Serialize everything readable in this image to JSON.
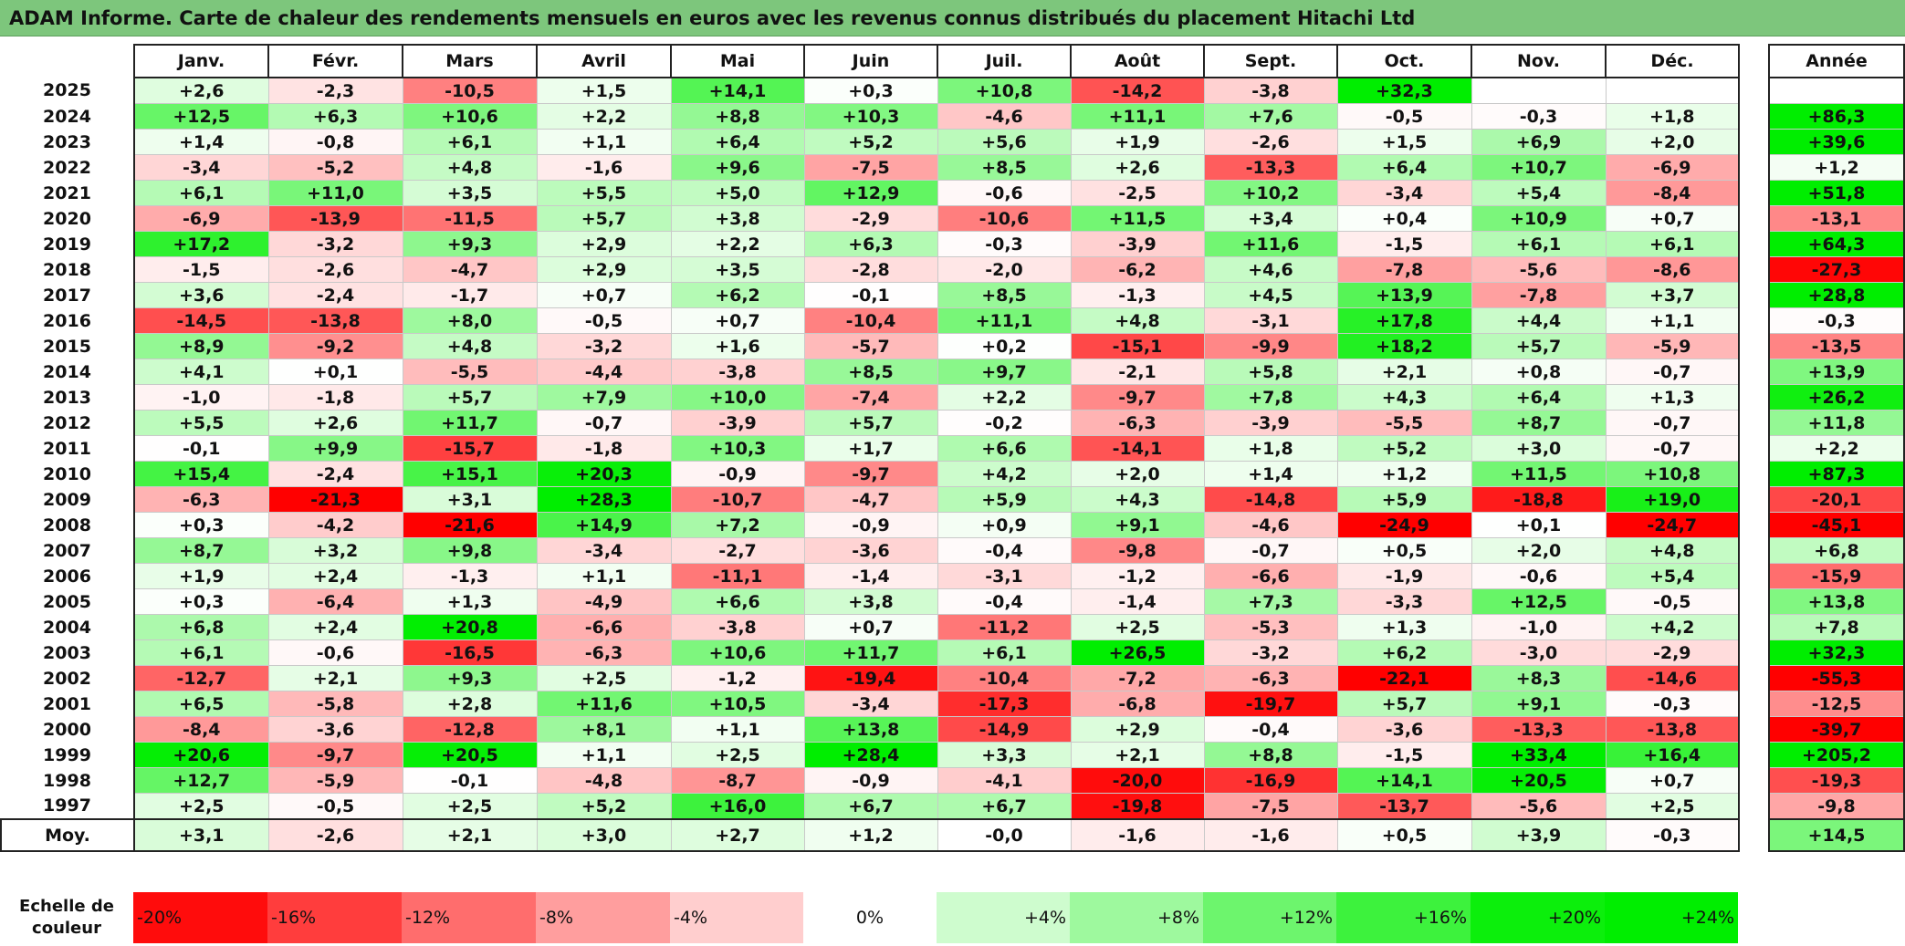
{
  "title": "ADAM Informe. Carte de chaleur des rendements mensuels en euros avec les revenus connus distribués du placement Hitachi Ltd",
  "colors": {
    "title_bar": "#7dc67c",
    "strong_negative": "#ff0000",
    "neutral": "#ffffff",
    "strong_positive": "#00ee00"
  },
  "chart_data": {
    "type": "heatmap",
    "title": "ADAM Informe. Carte de chaleur des rendements mensuels en euros avec les revenus connus distribués du placement Hitachi Ltd",
    "months": [
      "Janv.",
      "Févr.",
      "Mars",
      "Avril",
      "Mai",
      "Juin",
      "Juil.",
      "Août",
      "Sept.",
      "Oct.",
      "Nov.",
      "Déc."
    ],
    "annual_header": "Année",
    "rows": [
      {
        "year": "2025",
        "values": [
          "+2,6",
          "-2,3",
          "-10,5",
          "+1,5",
          "+14,1",
          "+0,3",
          "+10,8",
          "-14,2",
          "-3,8",
          "+32,3",
          "",
          ""
        ],
        "annual": ""
      },
      {
        "year": "2024",
        "values": [
          "+12,5",
          "+6,3",
          "+10,6",
          "+2,2",
          "+8,8",
          "+10,3",
          "-4,6",
          "+11,1",
          "+7,6",
          "-0,5",
          "-0,3",
          "+1,8"
        ],
        "annual": "+86,3"
      },
      {
        "year": "2023",
        "values": [
          "+1,4",
          "-0,8",
          "+6,1",
          "+1,1",
          "+6,4",
          "+5,2",
          "+5,6",
          "+1,9",
          "-2,6",
          "+1,5",
          "+6,9",
          "+2,0"
        ],
        "annual": "+39,6"
      },
      {
        "year": "2022",
        "values": [
          "-3,4",
          "-5,2",
          "+4,8",
          "-1,6",
          "+9,6",
          "-7,5",
          "+8,5",
          "+2,6",
          "-13,3",
          "+6,4",
          "+10,7",
          "-6,9"
        ],
        "annual": "+1,2"
      },
      {
        "year": "2021",
        "values": [
          "+6,1",
          "+11,0",
          "+3,5",
          "+5,5",
          "+5,0",
          "+12,9",
          "-0,6",
          "-2,5",
          "+10,2",
          "-3,4",
          "+5,4",
          "-8,4"
        ],
        "annual": "+51,8"
      },
      {
        "year": "2020",
        "values": [
          "-6,9",
          "-13,9",
          "-11,5",
          "+5,7",
          "+3,8",
          "-2,9",
          "-10,6",
          "+11,5",
          "+3,4",
          "+0,4",
          "+10,9",
          "+0,7"
        ],
        "annual": "-13,1"
      },
      {
        "year": "2019",
        "values": [
          "+17,2",
          "-3,2",
          "+9,3",
          "+2,9",
          "+2,2",
          "+6,3",
          "-0,3",
          "-3,9",
          "+11,6",
          "-1,5",
          "+6,1",
          "+6,1"
        ],
        "annual": "+64,3"
      },
      {
        "year": "2018",
        "values": [
          "-1,5",
          "-2,6",
          "-4,7",
          "+2,9",
          "+3,5",
          "-2,8",
          "-2,0",
          "-6,2",
          "+4,6",
          "-7,8",
          "-5,6",
          "-8,6"
        ],
        "annual": "-27,3"
      },
      {
        "year": "2017",
        "values": [
          "+3,6",
          "-2,4",
          "-1,7",
          "+0,7",
          "+6,2",
          "-0,1",
          "+8,5",
          "-1,3",
          "+4,5",
          "+13,9",
          "-7,8",
          "+3,7"
        ],
        "annual": "+28,8"
      },
      {
        "year": "2016",
        "values": [
          "-14,5",
          "-13,8",
          "+8,0",
          "-0,5",
          "+0,7",
          "-10,4",
          "+11,1",
          "+4,8",
          "-3,1",
          "+17,8",
          "+4,4",
          "+1,1"
        ],
        "annual": "-0,3"
      },
      {
        "year": "2015",
        "values": [
          "+8,9",
          "-9,2",
          "+4,8",
          "-3,2",
          "+1,6",
          "-5,7",
          "+0,2",
          "-15,1",
          "-9,9",
          "+18,2",
          "+5,7",
          "-5,9"
        ],
        "annual": "-13,5"
      },
      {
        "year": "2014",
        "values": [
          "+4,1",
          "+0,1",
          "-5,5",
          "-4,4",
          "-3,8",
          "+8,5",
          "+9,7",
          "-2,1",
          "+5,8",
          "+2,1",
          "+0,8",
          "-0,7"
        ],
        "annual": "+13,9"
      },
      {
        "year": "2013",
        "values": [
          "-1,0",
          "-1,8",
          "+5,7",
          "+7,9",
          "+10,0",
          "-7,4",
          "+2,2",
          "-9,7",
          "+7,8",
          "+4,3",
          "+6,4",
          "+1,3"
        ],
        "annual": "+26,2"
      },
      {
        "year": "2012",
        "values": [
          "+5,5",
          "+2,6",
          "+11,7",
          "-0,7",
          "-3,9",
          "+5,7",
          "-0,2",
          "-6,3",
          "-3,9",
          "-5,5",
          "+8,7",
          "-0,7"
        ],
        "annual": "+11,8"
      },
      {
        "year": "2011",
        "values": [
          "-0,1",
          "+9,9",
          "-15,7",
          "-1,8",
          "+10,3",
          "+1,7",
          "+6,6",
          "-14,1",
          "+1,8",
          "+5,2",
          "+3,0",
          "-0,7"
        ],
        "annual": "+2,2"
      },
      {
        "year": "2010",
        "values": [
          "+15,4",
          "-2,4",
          "+15,1",
          "+20,3",
          "-0,9",
          "-9,7",
          "+4,2",
          "+2,0",
          "+1,4",
          "+1,2",
          "+11,5",
          "+10,8"
        ],
        "annual": "+87,3"
      },
      {
        "year": "2009",
        "values": [
          "-6,3",
          "-21,3",
          "+3,1",
          "+28,3",
          "-10,7",
          "-4,7",
          "+5,9",
          "+4,3",
          "-14,8",
          "+5,9",
          "-18,8",
          "+19,0"
        ],
        "annual": "-20,1"
      },
      {
        "year": "2008",
        "values": [
          "+0,3",
          "-4,2",
          "-21,6",
          "+14,9",
          "+7,2",
          "-0,9",
          "+0,9",
          "+9,1",
          "-4,6",
          "-24,9",
          "+0,1",
          "-24,7"
        ],
        "annual": "-45,1"
      },
      {
        "year": "2007",
        "values": [
          "+8,7",
          "+3,2",
          "+9,8",
          "-3,4",
          "-2,7",
          "-3,6",
          "-0,4",
          "-9,8",
          "-0,7",
          "+0,5",
          "+2,0",
          "+4,8"
        ],
        "annual": "+6,8"
      },
      {
        "year": "2006",
        "values": [
          "+1,9",
          "+2,4",
          "-1,3",
          "+1,1",
          "-11,1",
          "-1,4",
          "-3,1",
          "-1,2",
          "-6,6",
          "-1,9",
          "-0,6",
          "+5,4"
        ],
        "annual": "-15,9"
      },
      {
        "year": "2005",
        "values": [
          "+0,3",
          "-6,4",
          "+1,3",
          "-4,9",
          "+6,6",
          "+3,8",
          "-0,4",
          "-1,4",
          "+7,3",
          "-3,3",
          "+12,5",
          "-0,5"
        ],
        "annual": "+13,8"
      },
      {
        "year": "2004",
        "values": [
          "+6,8",
          "+2,4",
          "+20,8",
          "-6,6",
          "-3,8",
          "+0,7",
          "-11,2",
          "+2,5",
          "-5,3",
          "+1,3",
          "-1,0",
          "+4,2"
        ],
        "annual": "+7,8"
      },
      {
        "year": "2003",
        "values": [
          "+6,1",
          "-0,6",
          "-16,5",
          "-6,3",
          "+10,6",
          "+11,7",
          "+6,1",
          "+26,5",
          "-3,2",
          "+6,2",
          "-3,0",
          "-2,9"
        ],
        "annual": "+32,3"
      },
      {
        "year": "2002",
        "values": [
          "-12,7",
          "+2,1",
          "+9,3",
          "+2,5",
          "-1,2",
          "-19,4",
          "-10,4",
          "-7,2",
          "-6,3",
          "-22,1",
          "+8,3",
          "-14,6"
        ],
        "annual": "-55,3"
      },
      {
        "year": "2001",
        "values": [
          "+6,5",
          "-5,8",
          "+2,8",
          "+11,6",
          "+10,5",
          "-3,4",
          "-17,3",
          "-6,8",
          "-19,7",
          "+5,7",
          "+9,1",
          "-0,3"
        ],
        "annual": "-12,5"
      },
      {
        "year": "2000",
        "values": [
          "-8,4",
          "-3,6",
          "-12,8",
          "+8,1",
          "+1,1",
          "+13,8",
          "-14,9",
          "+2,9",
          "-0,4",
          "-3,6",
          "-13,3",
          "-13,8"
        ],
        "annual": "-39,7"
      },
      {
        "year": "1999",
        "values": [
          "+20,6",
          "-9,7",
          "+20,5",
          "+1,1",
          "+2,5",
          "+28,4",
          "+3,3",
          "+2,1",
          "+8,8",
          "-1,5",
          "+33,4",
          "+16,4"
        ],
        "annual": "+205,2"
      },
      {
        "year": "1998",
        "values": [
          "+12,7",
          "-5,9",
          "-0,1",
          "-4,8",
          "-8,7",
          "-0,9",
          "-4,1",
          "-20,0",
          "-16,9",
          "+14,1",
          "+20,5",
          "+0,7"
        ],
        "annual": "-19,3"
      },
      {
        "year": "1997",
        "values": [
          "+2,5",
          "-0,5",
          "+2,5",
          "+5,2",
          "+16,0",
          "+6,7",
          "+6,7",
          "-19,8",
          "-7,5",
          "-13,7",
          "-5,6",
          "+2,5"
        ],
        "annual": "-9,8"
      }
    ],
    "average": {
      "label": "Moy.",
      "values": [
        "+3,1",
        "-2,6",
        "+2,1",
        "+3,0",
        "+2,7",
        "+1,2",
        "-0,0",
        "-1,6",
        "-1,6",
        "+0,5",
        "+3,9",
        "-0,3"
      ],
      "annual": "+14,5"
    },
    "scale": {
      "label": "Echelle de couleur",
      "stops": [
        {
          "text": "-20%",
          "value": -20
        },
        {
          "text": "-16%",
          "value": -16
        },
        {
          "text": "-12%",
          "value": -12
        },
        {
          "text": "-8%",
          "value": -8
        },
        {
          "text": "-4%",
          "value": -4
        },
        {
          "text": "0%",
          "value": 0
        },
        {
          "text": "+4%",
          "value": 4
        },
        {
          "text": "+8%",
          "value": 8
        },
        {
          "text": "+12%",
          "value": 12
        },
        {
          "text": "+16%",
          "value": 16
        },
        {
          "text": "+20%",
          "value": 20
        },
        {
          "text": "+24%",
          "value": 24
        }
      ]
    }
  }
}
